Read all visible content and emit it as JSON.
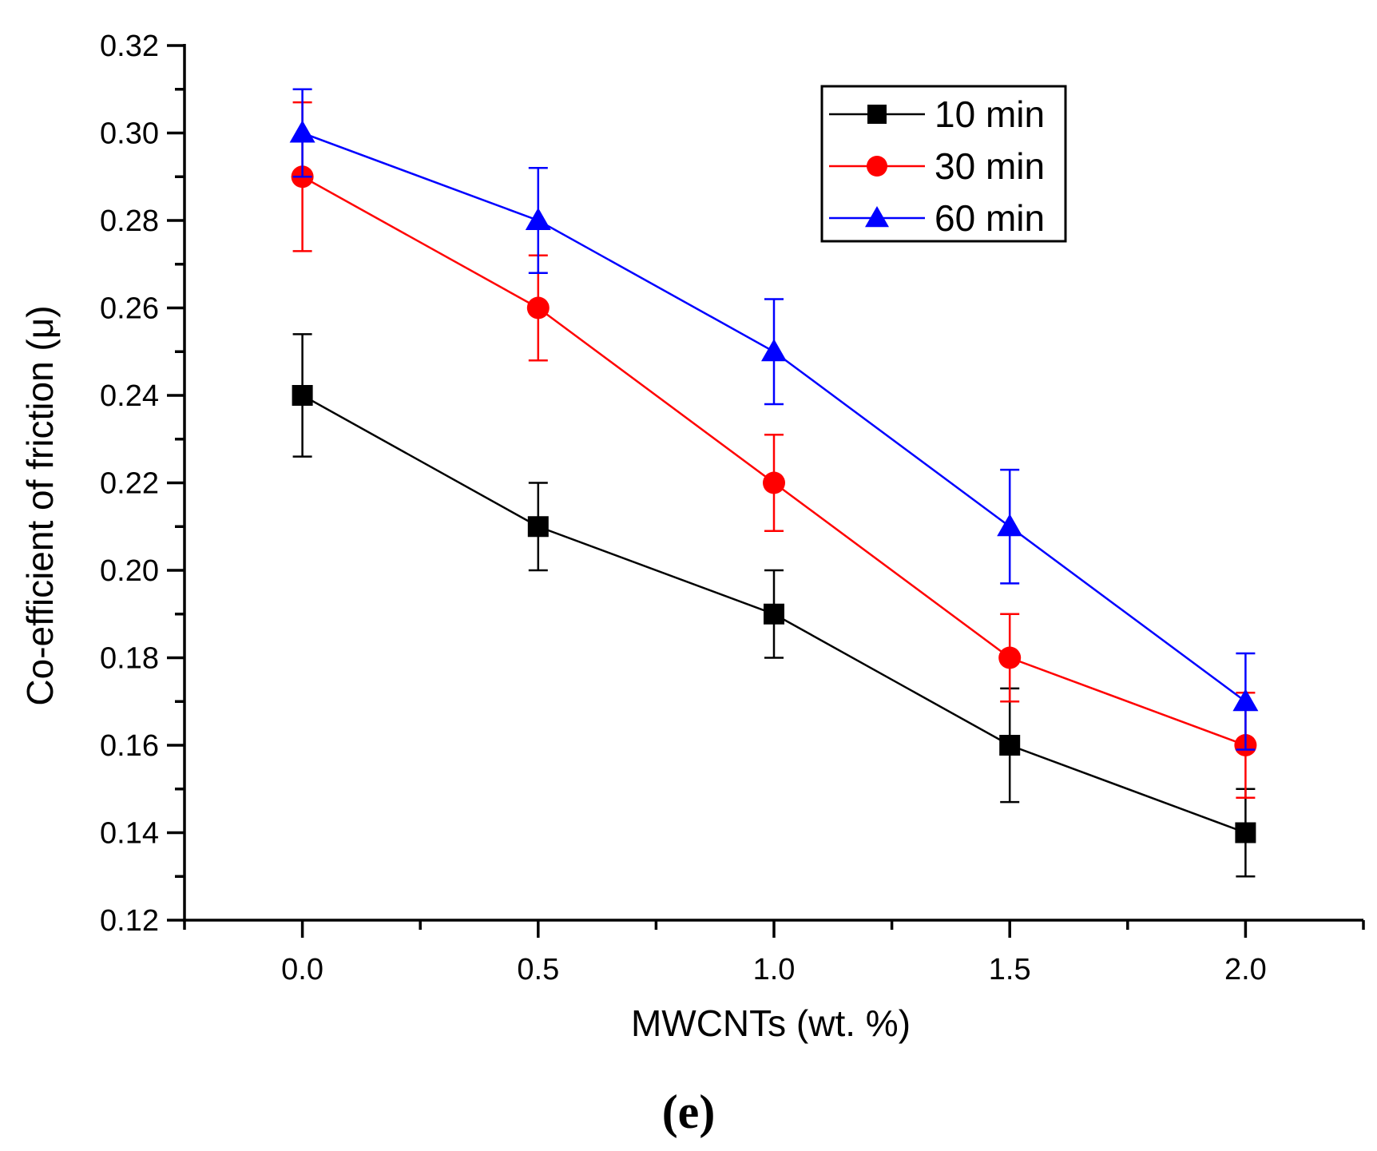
{
  "chart_data": {
    "type": "line",
    "title": "",
    "xlabel": "MWCNTs (wt. %)",
    "ylabel": "Co-efficient of friction (μ)",
    "xlim": [
      -0.25,
      2.25
    ],
    "ylim": [
      0.12,
      0.32
    ],
    "x": [
      0.0,
      0.5,
      1.0,
      1.5,
      2.0
    ],
    "x_tick_labels": [
      "0.0",
      "0.5",
      "1.0",
      "1.5",
      "2.0"
    ],
    "y_tick_labels": [
      "0.12",
      "0.14",
      "0.16",
      "0.18",
      "0.20",
      "0.22",
      "0.24",
      "0.26",
      "0.28",
      "0.30",
      "0.32"
    ],
    "series": [
      {
        "name": "10 min",
        "color": "#000000",
        "marker": "square",
        "values": [
          0.24,
          0.21,
          0.19,
          0.16,
          0.14
        ],
        "error": [
          0.014,
          0.01,
          0.01,
          0.013,
          0.01
        ]
      },
      {
        "name": "30 min",
        "color": "#ff0000",
        "marker": "circle",
        "values": [
          0.29,
          0.26,
          0.22,
          0.18,
          0.16
        ],
        "error": [
          0.017,
          0.012,
          0.011,
          0.01,
          0.012
        ]
      },
      {
        "name": "60 min",
        "color": "#0000ff",
        "marker": "triangle",
        "values": [
          0.3,
          0.28,
          0.25,
          0.21,
          0.17
        ],
        "error": [
          0.01,
          0.012,
          0.012,
          0.013,
          0.011
        ]
      }
    ],
    "legend_position": "top-right",
    "grid": false,
    "panel_label": "(e)"
  }
}
